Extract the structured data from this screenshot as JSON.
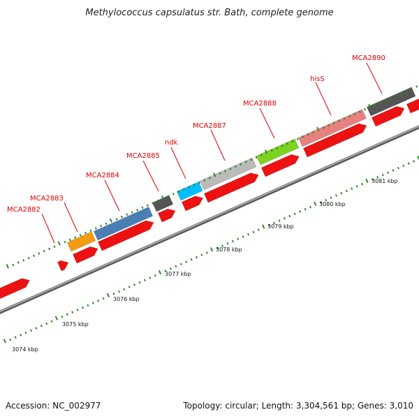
{
  "title": "Methylococcus capsulatus str. Bath, complete genome",
  "footer": {
    "accession": "Accession: NC_002977",
    "summary": "Topology: circular; Length: 3,304,561 bp; Genes: 3,010"
  },
  "colors": {
    "backbone": "#777777",
    "tick": "#2a8a2a",
    "label": "#dd0000",
    "cds": "#ee1111"
  },
  "gene_labels": [
    {
      "text": "MCA2882"
    },
    {
      "text": "MCA2883"
    },
    {
      "text": "MCA2884"
    },
    {
      "text": "MCA2885"
    },
    {
      "text": "ndk"
    },
    {
      "text": "MCA2887"
    },
    {
      "text": "MCA2888"
    },
    {
      "text": "hisS"
    },
    {
      "text": "MCA2890"
    }
  ],
  "scale_labels": [
    "3074 kbp",
    "3075 kbp",
    "3076 kbp",
    "3077 kbp",
    "3078 kbp",
    "3079 kbp",
    "3080 kbp",
    "3081 kbp"
  ],
  "cog_colors": [
    "#f39c12",
    "#4a7fb5",
    "#555555",
    "#00bfff",
    "#bbbbbb",
    "#7ed321",
    "#e88080",
    "#555555"
  ]
}
